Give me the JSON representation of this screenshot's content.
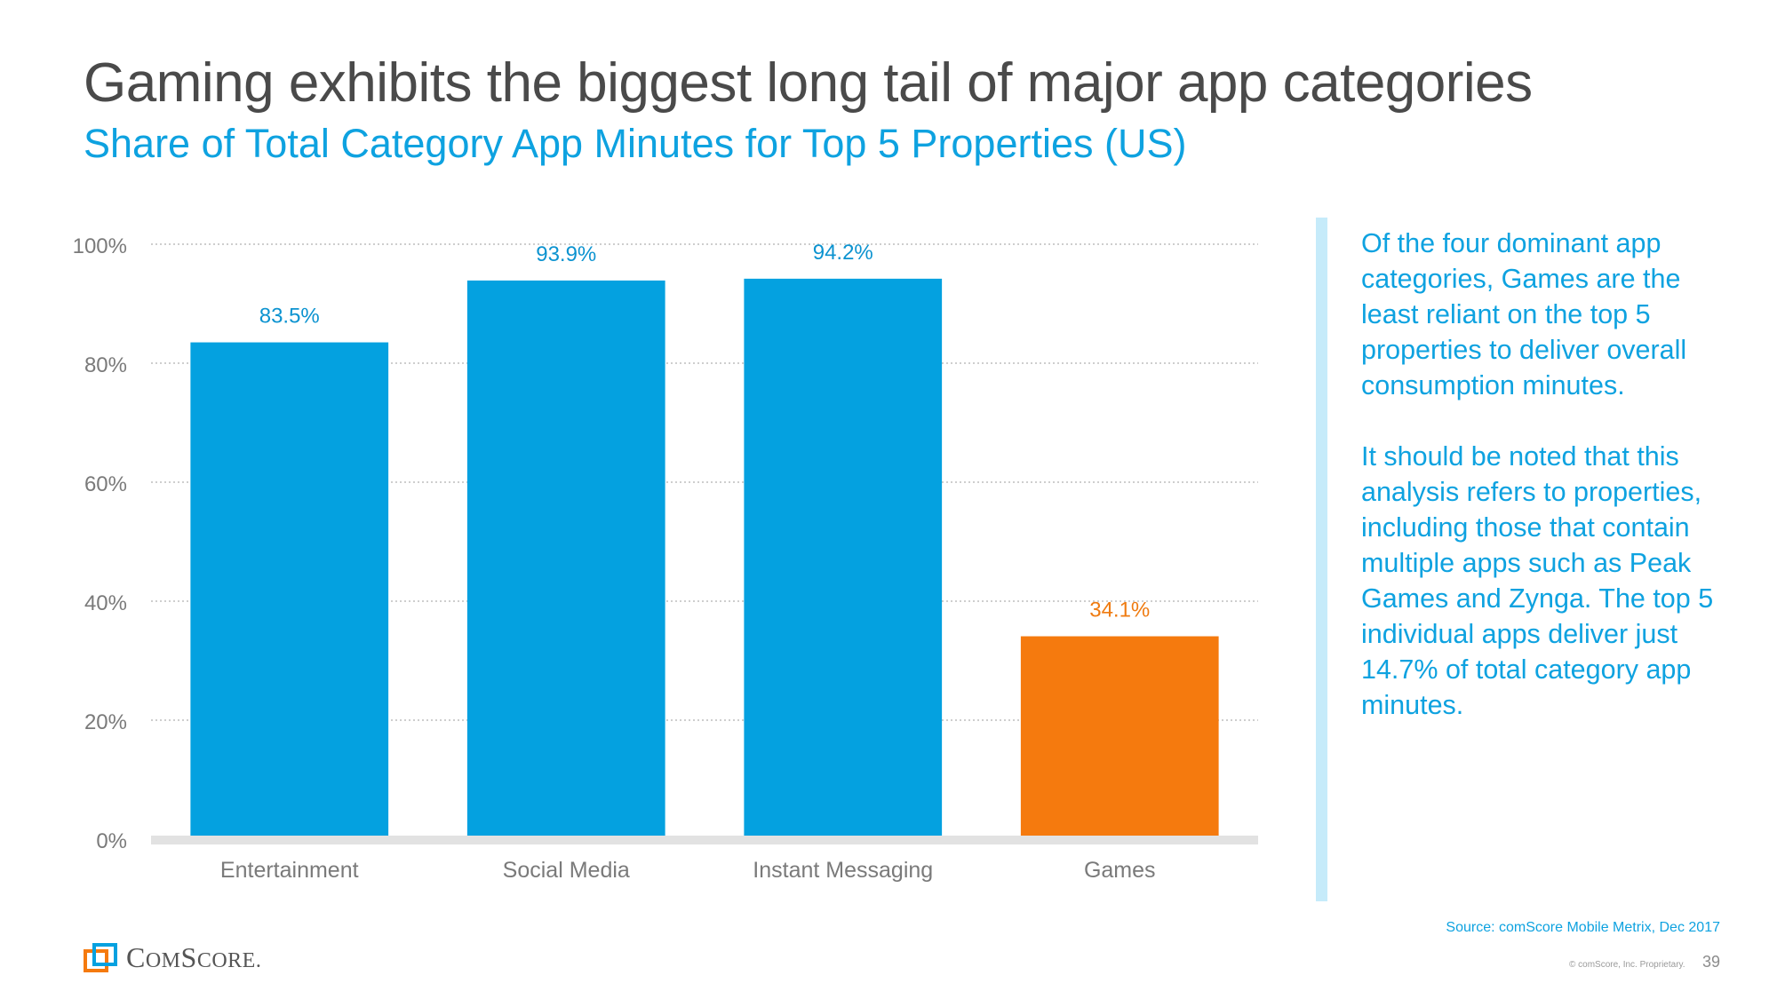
{
  "slide": {
    "title": "Gaming exhibits the biggest long tail of major app categories",
    "subtitle": "Share of Total Category App Minutes for Top 5 Properties (US)"
  },
  "commentary": {
    "paragraph1": "Of the four dominant app categories, Games are the least reliant on the top 5 properties to deliver overall consumption minutes.",
    "paragraph2": "It should be noted that this analysis refers to properties, including those that contain multiple apps such as Peak Games and Zynga. The top 5 individual apps deliver just 14.7% of total category app minutes."
  },
  "footer": {
    "source": "Source: comScore Mobile Metrix, Dec 2017",
    "copyright": "© comScore, Inc. Proprietary.",
    "page_number": "39",
    "logo_text_big_c": "C",
    "logo_text_om": "OM",
    "logo_text_big_s": "S",
    "logo_text_core": "CORE",
    "logo_text_dot": "."
  },
  "colors": {
    "bar_default": "#04a1e0",
    "bar_highlight": "#f57a0e",
    "label_default": "#0c93d0",
    "label_highlight": "#ef7b11",
    "axis": "#7a7a7a",
    "grid": "#bdbdbd",
    "baseline": "#e2e2e2"
  },
  "chart_data": {
    "type": "bar",
    "title": "Share of Total Category App Minutes for Top 5 Properties (US)",
    "xlabel": "",
    "ylabel": "",
    "categories": [
      "Entertainment",
      "Social Media",
      "Instant Messaging",
      "Games"
    ],
    "values": [
      83.5,
      93.9,
      94.2,
      34.1
    ],
    "value_labels": [
      "83.5%",
      "93.9%",
      "94.2%",
      "34.1%"
    ],
    "highlight": [
      false,
      false,
      false,
      true
    ],
    "ylim": [
      0,
      100
    ],
    "yticks": [
      0,
      20,
      40,
      60,
      80,
      100
    ],
    "ytick_labels": [
      "0%",
      "20%",
      "40%",
      "60%",
      "80%",
      "100%"
    ],
    "grid": true,
    "legend": "none"
  }
}
